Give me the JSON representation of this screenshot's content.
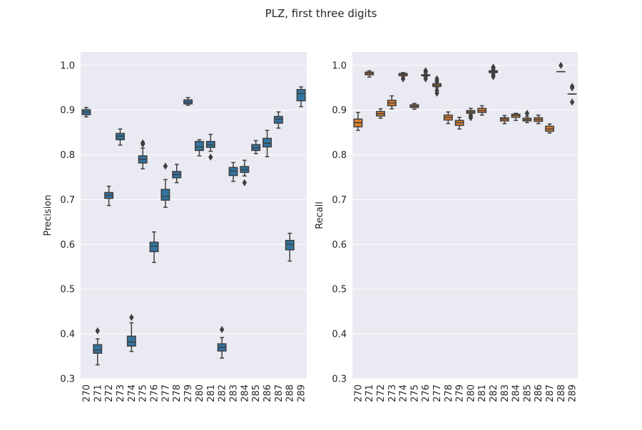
{
  "figure": {
    "title": "PLZ, first three digits"
  },
  "colors": {
    "background": "#eaeaf2",
    "grid": "#ffffff",
    "line": "#3f3f3f",
    "blue": "#3274a1",
    "orange": "#e1812c"
  },
  "chart_data": [
    {
      "type": "box",
      "ylabel": "Precision",
      "xlabel": "",
      "ylim": [
        0.3,
        1.03
      ],
      "yticks": [
        "0.3",
        "0.4",
        "0.5",
        "0.6",
        "0.7",
        "0.8",
        "0.9",
        "1.0"
      ],
      "categories": [
        "270",
        "271",
        "272",
        "273",
        "274",
        "275",
        "276",
        "277",
        "278",
        "279",
        "280",
        "281",
        "282",
        "283",
        "284",
        "285",
        "286",
        "287",
        "288",
        "289"
      ],
      "grid": true,
      "boxes": [
        {
          "category": "270",
          "present": true,
          "color": "blue",
          "min": 0.885,
          "q1": 0.89,
          "median": 0.896,
          "q3": 0.901,
          "max": 0.906,
          "outliers": []
        },
        {
          "category": "271",
          "present": true,
          "color": "blue",
          "min": 0.331,
          "q1": 0.357,
          "median": 0.364,
          "q3": 0.376,
          "max": 0.389,
          "outliers": [
            0.407
          ]
        },
        {
          "category": "272",
          "present": true,
          "color": "blue",
          "min": 0.687,
          "q1": 0.703,
          "median": 0.71,
          "q3": 0.716,
          "max": 0.73,
          "outliers": []
        },
        {
          "category": "273",
          "present": true,
          "color": "blue",
          "min": 0.822,
          "q1": 0.834,
          "median": 0.842,
          "q3": 0.848,
          "max": 0.858,
          "outliers": []
        },
        {
          "category": "274",
          "present": true,
          "color": "blue",
          "min": 0.361,
          "q1": 0.373,
          "median": 0.382,
          "q3": 0.395,
          "max": 0.425,
          "outliers": [
            0.437
          ]
        },
        {
          "category": "275",
          "present": true,
          "color": "blue",
          "min": 0.769,
          "q1": 0.782,
          "median": 0.79,
          "q3": 0.798,
          "max": 0.815,
          "outliers": [
            0.827,
            0.824
          ]
        },
        {
          "category": "276",
          "present": true,
          "color": "blue",
          "min": 0.56,
          "q1": 0.584,
          "median": 0.596,
          "q3": 0.605,
          "max": 0.628,
          "outliers": []
        },
        {
          "category": "277",
          "present": true,
          "color": "blue",
          "min": 0.683,
          "q1": 0.699,
          "median": 0.707,
          "q3": 0.723,
          "max": 0.745,
          "outliers": [
            0.775
          ]
        },
        {
          "category": "278",
          "present": true,
          "color": "blue",
          "min": 0.738,
          "q1": 0.749,
          "median": 0.756,
          "q3": 0.763,
          "max": 0.779,
          "outliers": []
        },
        {
          "category": "279",
          "present": true,
          "color": "blue",
          "min": 0.911,
          "q1": 0.914,
          "median": 0.918,
          "q3": 0.923,
          "max": 0.928,
          "outliers": []
        },
        {
          "category": "280",
          "present": true,
          "color": "blue",
          "min": 0.798,
          "q1": 0.81,
          "median": 0.818,
          "q3": 0.83,
          "max": 0.834,
          "outliers": []
        },
        {
          "category": "281",
          "present": true,
          "color": "blue",
          "min": 0.808,
          "q1": 0.817,
          "median": 0.823,
          "q3": 0.83,
          "max": 0.846,
          "outliers": [
            0.795
          ]
        },
        {
          "category": "282",
          "present": true,
          "color": "blue",
          "min": 0.346,
          "q1": 0.362,
          "median": 0.37,
          "q3": 0.378,
          "max": 0.392,
          "outliers": [
            0.41
          ]
        },
        {
          "category": "283",
          "present": true,
          "color": "blue",
          "min": 0.741,
          "q1": 0.754,
          "median": 0.764,
          "q3": 0.772,
          "max": 0.783,
          "outliers": []
        },
        {
          "category": "284",
          "present": true,
          "color": "blue",
          "min": 0.753,
          "q1": 0.761,
          "median": 0.767,
          "q3": 0.774,
          "max": 0.788,
          "outliers": [
            0.738
          ]
        },
        {
          "category": "285",
          "present": true,
          "color": "blue",
          "min": 0.803,
          "q1": 0.81,
          "median": 0.816,
          "q3": 0.823,
          "max": 0.832,
          "outliers": []
        },
        {
          "category": "286",
          "present": true,
          "color": "blue",
          "min": 0.796,
          "q1": 0.818,
          "median": 0.826,
          "q3": 0.837,
          "max": 0.855,
          "outliers": []
        },
        {
          "category": "287",
          "present": true,
          "color": "blue",
          "min": 0.86,
          "q1": 0.871,
          "median": 0.88,
          "q3": 0.886,
          "max": 0.896,
          "outliers": []
        },
        {
          "category": "288",
          "present": true,
          "color": "blue",
          "min": 0.563,
          "q1": 0.588,
          "median": 0.6,
          "q3": 0.609,
          "max": 0.625,
          "outliers": []
        },
        {
          "category": "289",
          "present": true,
          "color": "blue",
          "min": 0.908,
          "q1": 0.921,
          "median": 0.937,
          "q3": 0.946,
          "max": 0.952,
          "outliers": []
        }
      ]
    },
    {
      "type": "box",
      "ylabel": "Recall",
      "xlabel": "",
      "ylim": [
        0.3,
        1.03
      ],
      "yticks": [
        "0.3",
        "0.4",
        "0.5",
        "0.6",
        "0.7",
        "0.8",
        "0.9",
        "1.0"
      ],
      "categories": [
        "270",
        "271",
        "272",
        "273",
        "274",
        "275",
        "276",
        "277",
        "278",
        "279",
        "280",
        "281",
        "282",
        "283",
        "284",
        "285",
        "286",
        "287",
        "288",
        "289"
      ],
      "grid": true,
      "boxes": [
        {
          "category": "270",
          "present": true,
          "color": "orange",
          "min": 0.855,
          "q1": 0.863,
          "median": 0.872,
          "q3": 0.88,
          "max": 0.895,
          "outliers": []
        },
        {
          "category": "271",
          "present": true,
          "color": "orange",
          "min": 0.974,
          "q1": 0.979,
          "median": 0.982,
          "q3": 0.985,
          "max": 0.988,
          "outliers": []
        },
        {
          "category": "272",
          "present": true,
          "color": "orange",
          "min": 0.882,
          "q1": 0.887,
          "median": 0.892,
          "q3": 0.897,
          "max": 0.903,
          "outliers": []
        },
        {
          "category": "273",
          "present": true,
          "color": "orange",
          "min": 0.903,
          "q1": 0.91,
          "median": 0.916,
          "q3": 0.922,
          "max": 0.932,
          "outliers": []
        },
        {
          "category": "274",
          "present": true,
          "color": "orange",
          "min": 0.975,
          "q1": 0.977,
          "median": 0.98,
          "q3": 0.982,
          "max": 0.984,
          "outliers": [
            0.97
          ]
        },
        {
          "category": "275",
          "present": true,
          "color": "orange",
          "min": 0.902,
          "q1": 0.906,
          "median": 0.909,
          "q3": 0.912,
          "max": 0.915,
          "outliers": []
        },
        {
          "category": "276",
          "present": true,
          "color": "orange",
          "min": 0.976,
          "q1": 0.977,
          "median": 0.978,
          "q3": 0.979,
          "max": 0.98,
          "outliers": [
            0.97,
            0.975,
            0.985,
            0.988
          ]
        },
        {
          "category": "277",
          "present": true,
          "color": "orange",
          "min": 0.95,
          "q1": 0.953,
          "median": 0.956,
          "q3": 0.959,
          "max": 0.962,
          "outliers": [
            0.938,
            0.944,
            0.965,
            0.97
          ]
        },
        {
          "category": "278",
          "present": true,
          "color": "orange",
          "min": 0.87,
          "q1": 0.878,
          "median": 0.884,
          "q3": 0.889,
          "max": 0.896,
          "outliers": []
        },
        {
          "category": "279",
          "present": true,
          "color": "orange",
          "min": 0.858,
          "q1": 0.866,
          "median": 0.872,
          "q3": 0.877,
          "max": 0.884,
          "outliers": []
        },
        {
          "category": "280",
          "present": true,
          "color": "orange",
          "min": 0.89,
          "q1": 0.893,
          "median": 0.896,
          "q3": 0.899,
          "max": 0.904,
          "outliers": [
            0.883,
            0.887
          ]
        },
        {
          "category": "281",
          "present": true,
          "color": "orange",
          "min": 0.889,
          "q1": 0.895,
          "median": 0.899,
          "q3": 0.904,
          "max": 0.91,
          "outliers": []
        },
        {
          "category": "282",
          "present": true,
          "color": "orange",
          "min": 0.983,
          "q1": 0.984,
          "median": 0.986,
          "q3": 0.988,
          "max": 0.989,
          "outliers": [
            0.975,
            0.979,
            0.993,
            0.996
          ]
        },
        {
          "category": "283",
          "present": true,
          "color": "orange",
          "min": 0.87,
          "q1": 0.876,
          "median": 0.88,
          "q3": 0.883,
          "max": 0.888,
          "outliers": []
        },
        {
          "category": "284",
          "present": true,
          "color": "orange",
          "min": 0.877,
          "q1": 0.884,
          "median": 0.888,
          "q3": 0.891,
          "max": 0.893,
          "outliers": []
        },
        {
          "category": "285",
          "present": true,
          "color": "orange",
          "min": 0.872,
          "q1": 0.876,
          "median": 0.879,
          "q3": 0.882,
          "max": 0.886,
          "outliers": [
            0.893
          ]
        },
        {
          "category": "286",
          "present": true,
          "color": "orange",
          "min": 0.87,
          "q1": 0.875,
          "median": 0.879,
          "q3": 0.883,
          "max": 0.889,
          "outliers": []
        },
        {
          "category": "287",
          "present": true,
          "color": "orange",
          "min": 0.849,
          "q1": 0.853,
          "median": 0.858,
          "q3": 0.864,
          "max": 0.869,
          "outliers": []
        },
        {
          "category": "288",
          "present": true,
          "color": "orange",
          "min": 0.986,
          "q1": 0.986,
          "median": 0.986,
          "q3": 0.986,
          "max": 0.986,
          "outliers": [
            1.0
          ]
        },
        {
          "category": "289",
          "present": true,
          "color": "orange",
          "min": 0.936,
          "q1": 0.936,
          "median": 0.936,
          "q3": 0.936,
          "max": 0.936,
          "outliers": [
            0.918,
            0.95,
            0.953
          ]
        }
      ]
    }
  ]
}
